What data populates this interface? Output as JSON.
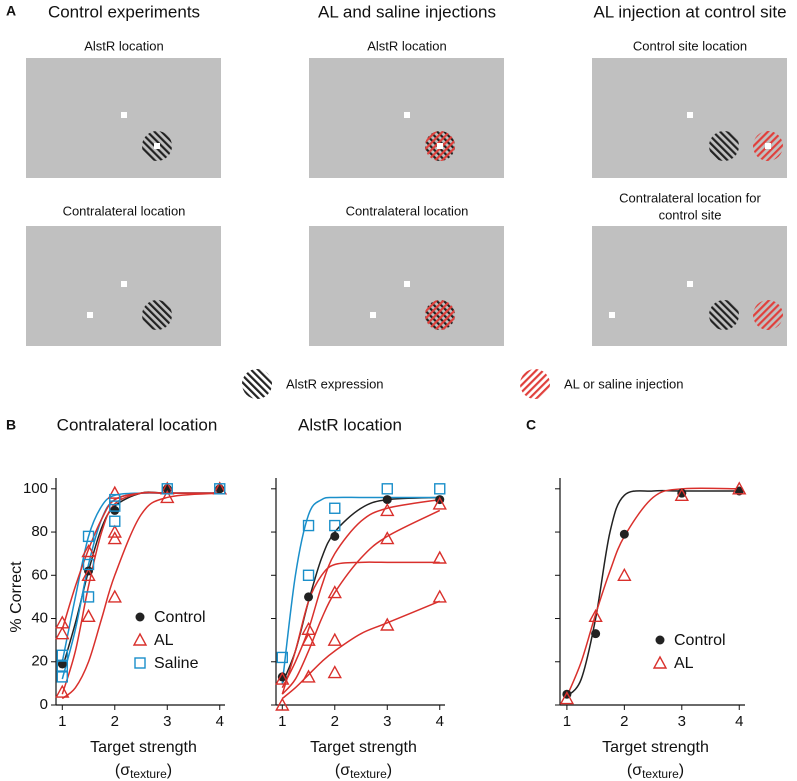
{
  "panel_a": {
    "label": "A",
    "columns": [
      {
        "title": "Control experiments",
        "panels": [
          {
            "label": "AlstR location"
          },
          {
            "label": "Contralateral location"
          }
        ]
      },
      {
        "title": "AL and saline injections",
        "panels": [
          {
            "label": "AlstR location"
          },
          {
            "label": "Contralateral location"
          }
        ]
      },
      {
        "title": "AL injection at control site",
        "panels": [
          {
            "label": "Control site location"
          },
          {
            "label": [
              "Contralateral location for",
              "control site"
            ]
          }
        ]
      }
    ],
    "legend": [
      "AlstR expression",
      "AL or saline injection"
    ]
  },
  "panel_labels": [
    "B",
    "C"
  ],
  "chart_data": [
    {
      "type": "scatter",
      "title": "Contralateral location",
      "ylabel": "% Correct",
      "xlabel": [
        "Target strength",
        "(σ",
        "texture",
        ")"
      ],
      "xlim": [
        0.88,
        4.1
      ],
      "ylim": [
        0,
        105
      ],
      "xticks": [
        1,
        2,
        3,
        4
      ],
      "yticks": [
        0,
        20,
        40,
        60,
        80,
        100
      ],
      "ytick_labels": true,
      "legend": "lower right",
      "series": [
        {
          "name": "Control",
          "color": "#222222",
          "marker": "circle",
          "x": [
            1,
            1.5,
            2,
            3,
            4
          ],
          "values": [
            19,
            62,
            90,
            100,
            100
          ]
        },
        {
          "name": "AL",
          "color": "#d9302c",
          "marker": "triangle",
          "x": [
            1,
            1,
            1,
            1.5,
            1.5,
            1.5,
            2,
            2,
            2,
            2,
            3,
            3,
            4,
            4
          ],
          "values": [
            38,
            33,
            6,
            71,
            41,
            60,
            98,
            80,
            77,
            50,
            96,
            100,
            100,
            100
          ]
        },
        {
          "name": "Saline",
          "color": "#1a8fca",
          "marker": "square",
          "x": [
            1,
            1,
            1,
            1.5,
            1.5,
            1.5,
            2,
            2,
            2,
            3,
            4
          ],
          "values": [
            23,
            13,
            18,
            78,
            50,
            65,
            95,
            85,
            92,
            100,
            100
          ]
        }
      ],
      "fit_x": [
        1,
        1.25,
        1.5,
        1.75,
        2,
        2.5,
        3,
        4
      ],
      "curves": [
        {
          "color": "#222222",
          "values": [
            17,
            38,
            62,
            82,
            92,
            98,
            98,
            98
          ]
        },
        {
          "color": "#1a8fca",
          "values": [
            20,
            50,
            78,
            92,
            97,
            98,
            98,
            98
          ]
        },
        {
          "color": "#1a8fca",
          "values": [
            12,
            35,
            65,
            86,
            95,
            98,
            98,
            98
          ]
        },
        {
          "color": "#d9302c",
          "values": [
            35,
            55,
            72,
            86,
            95,
            98,
            98,
            98
          ]
        },
        {
          "color": "#d9302c",
          "values": [
            5,
            25,
            55,
            80,
            93,
            98,
            98,
            98
          ]
        },
        {
          "color": "#d9302c",
          "values": [
            3,
            8,
            20,
            40,
            60,
            88,
            96,
            98
          ]
        }
      ]
    },
    {
      "type": "scatter",
      "title": "AlstR location",
      "xlabel": [
        "Target strength",
        "(σ",
        "texture",
        ")"
      ],
      "xlim": [
        0.88,
        4.1
      ],
      "ylim": [
        0,
        105
      ],
      "xticks": [
        1,
        2,
        3,
        4
      ],
      "yticks": [
        0,
        20,
        40,
        60,
        80,
        100
      ],
      "ytick_labels": false,
      "series": [
        {
          "name": "Control",
          "color": "#222222",
          "marker": "circle",
          "x": [
            1,
            1.5,
            2,
            3,
            4
          ],
          "values": [
            13,
            50,
            78,
            95,
            95
          ]
        },
        {
          "name": "AL",
          "color": "#d9302c",
          "marker": "triangle",
          "x": [
            1,
            1,
            1.5,
            1.5,
            1.5,
            2,
            2,
            2,
            3,
            3,
            3,
            4,
            4,
            4
          ],
          "values": [
            12,
            0,
            35,
            30,
            13,
            52,
            30,
            15,
            90,
            77,
            37,
            93,
            68,
            50
          ]
        },
        {
          "name": "Saline",
          "color": "#1a8fca",
          "marker": "square",
          "x": [
            1,
            1.5,
            1.5,
            2,
            2,
            3,
            4
          ],
          "values": [
            22,
            83,
            60,
            91,
            83,
            100,
            100
          ]
        }
      ],
      "fit_x": [
        1,
        1.25,
        1.5,
        1.75,
        2,
        2.5,
        3,
        4
      ],
      "curves": [
        {
          "color": "#222222",
          "values": [
            10,
            25,
            48,
            68,
            80,
            91,
            95,
            96
          ]
        },
        {
          "color": "#1a8fca",
          "values": [
            10,
            60,
            88,
            95,
            96,
            96,
            96,
            96
          ]
        },
        {
          "color": "#d9302c",
          "values": [
            8,
            20,
            35,
            55,
            70,
            85,
            91,
            95
          ]
        },
        {
          "color": "#d9302c",
          "values": [
            5,
            12,
            25,
            40,
            52,
            68,
            78,
            90
          ]
        },
        {
          "color": "#d9302c",
          "values": [
            5,
            25,
            48,
            60,
            65,
            66,
            66,
            66
          ]
        },
        {
          "color": "#d9302c",
          "values": [
            3,
            8,
            14,
            20,
            25,
            33,
            38,
            48
          ]
        }
      ]
    },
    {
      "type": "scatter",
      "xlabel": [
        "Target strength",
        "(σ",
        "texture",
        ")"
      ],
      "xlim": [
        0.88,
        4.1
      ],
      "ylim": [
        0,
        105
      ],
      "xticks": [
        1,
        2,
        3,
        4
      ],
      "yticks": [
        0,
        20,
        40,
        60,
        80,
        100
      ],
      "ytick_labels": false,
      "legend": "lower right",
      "series": [
        {
          "name": "Control",
          "color": "#222222",
          "marker": "circle",
          "x": [
            1,
            1.5,
            2,
            3,
            4
          ],
          "values": [
            5,
            33,
            79,
            98,
            99
          ]
        },
        {
          "name": "AL",
          "color": "#d9302c",
          "marker": "triangle",
          "x": [
            1,
            1.5,
            2,
            3,
            4
          ],
          "values": [
            3,
            41,
            60,
            97,
            100
          ]
        }
      ],
      "fit_x": [
        1,
        1.25,
        1.5,
        1.75,
        2,
        2.5,
        3,
        4
      ],
      "curves": [
        {
          "color": "#222222",
          "values": [
            4,
            12,
            40,
            80,
            97,
            99,
            99,
            99
          ]
        },
        {
          "color": "#d9302c",
          "values": [
            4,
            20,
            42,
            62,
            78,
            96,
            100,
            100
          ]
        }
      ]
    }
  ]
}
